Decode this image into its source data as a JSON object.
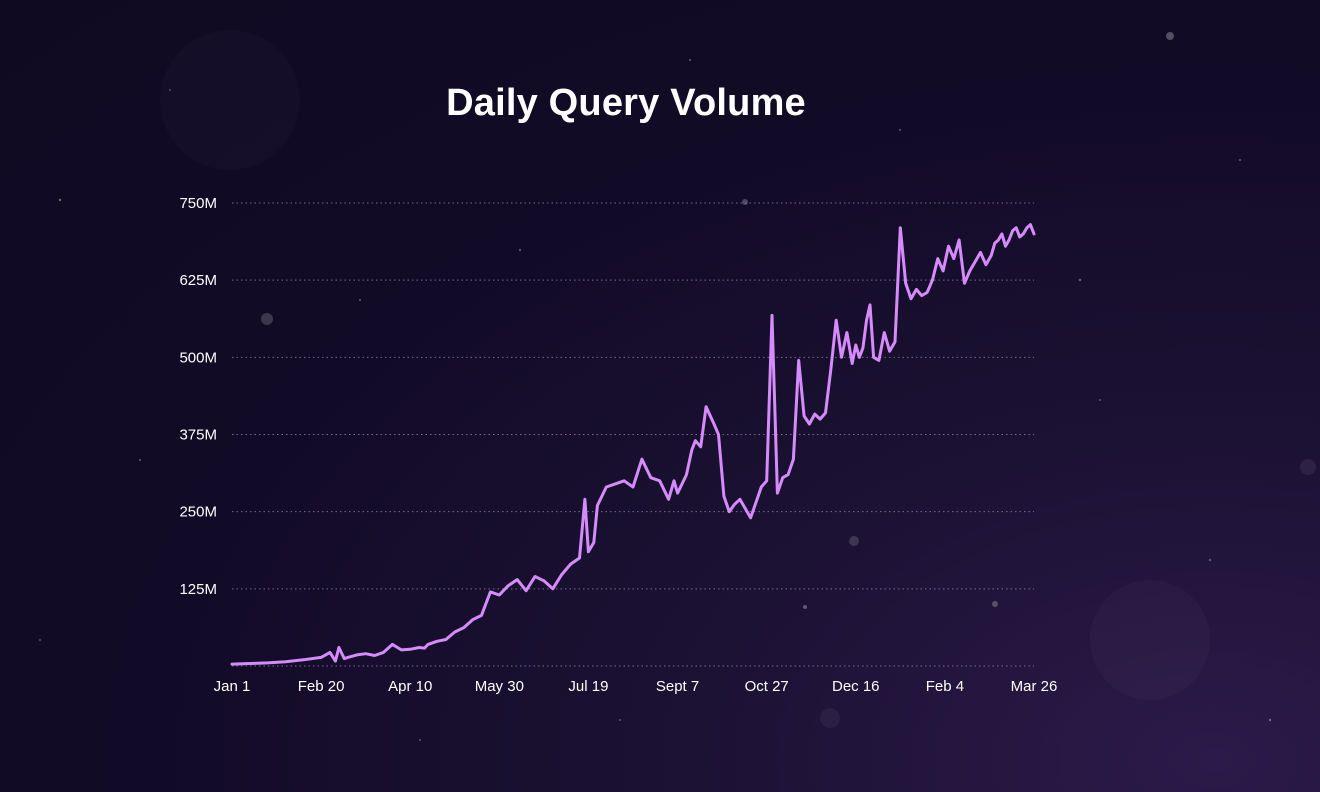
{
  "chart_data": {
    "type": "line",
    "title": "Daily Query Volume",
    "xlabel": "",
    "ylabel": "",
    "ylim": [
      0,
      750
    ],
    "unit": "M",
    "y_ticks": [
      125,
      250,
      375,
      500,
      625,
      750
    ],
    "y_tick_labels": [
      "125M",
      "250M",
      "375M",
      "500M",
      "625M",
      "750M"
    ],
    "x_tick_labels": [
      "Jan 1",
      "Feb 20",
      "Apr 10",
      "May 30",
      "Jul 19",
      "Sept 7",
      "Oct 27",
      "Dec 16",
      "Feb 4",
      "Mar 26"
    ],
    "x_range": [
      0,
      450
    ],
    "grid": true,
    "line_color": "#d68bfb",
    "series": [
      {
        "name": "Daily Query Volume",
        "x": [
          0,
          10,
          20,
          30,
          40,
          50,
          55,
          58,
          60,
          63,
          65,
          70,
          75,
          80,
          85,
          90,
          95,
          100,
          105,
          108,
          110,
          115,
          120,
          125,
          130,
          135,
          140,
          145,
          150,
          155,
          160,
          165,
          170,
          175,
          180,
          185,
          190,
          195,
          198,
          200,
          203,
          205,
          210,
          215,
          220,
          225,
          230,
          235,
          240,
          245,
          248,
          250,
          255,
          258,
          260,
          263,
          266,
          270,
          273,
          276,
          279,
          282,
          285,
          288,
          291,
          294,
          297,
          300,
          303,
          306,
          309,
          312,
          315,
          318,
          321,
          324,
          327,
          330,
          333,
          336,
          339,
          342,
          345,
          348,
          350,
          352,
          354,
          356,
          358,
          360,
          363,
          366,
          369,
          372,
          375,
          378,
          381,
          384,
          387,
          390,
          393,
          396,
          399,
          402,
          405,
          408,
          411,
          414,
          417,
          420,
          423,
          426,
          428,
          430,
          432,
          434,
          436,
          438,
          440,
          442,
          444,
          446,
          448,
          450
        ],
        "values": [
          3,
          4,
          5,
          7,
          10,
          14,
          22,
          8,
          30,
          12,
          14,
          18,
          20,
          17,
          22,
          35,
          26,
          27,
          30,
          29,
          35,
          40,
          43,
          55,
          62,
          75,
          82,
          120,
          115,
          130,
          140,
          122,
          145,
          138,
          125,
          148,
          165,
          175,
          270,
          185,
          200,
          260,
          290,
          295,
          300,
          290,
          335,
          305,
          300,
          270,
          300,
          280,
          310,
          350,
          365,
          355,
          420,
          395,
          375,
          275,
          250,
          262,
          270,
          255,
          240,
          265,
          290,
          300,
          568,
          280,
          305,
          310,
          335,
          495,
          405,
          392,
          408,
          400,
          410,
          480,
          560,
          500,
          540,
          490,
          520,
          500,
          515,
          560,
          585,
          500,
          495,
          540,
          510,
          525,
          710,
          620,
          595,
          610,
          600,
          605,
          625,
          660,
          640,
          680,
          660,
          690,
          620,
          640,
          655,
          670,
          650,
          665,
          685,
          690,
          700,
          680,
          690,
          705,
          710,
          695,
          700,
          710,
          715,
          700
        ]
      }
    ]
  }
}
